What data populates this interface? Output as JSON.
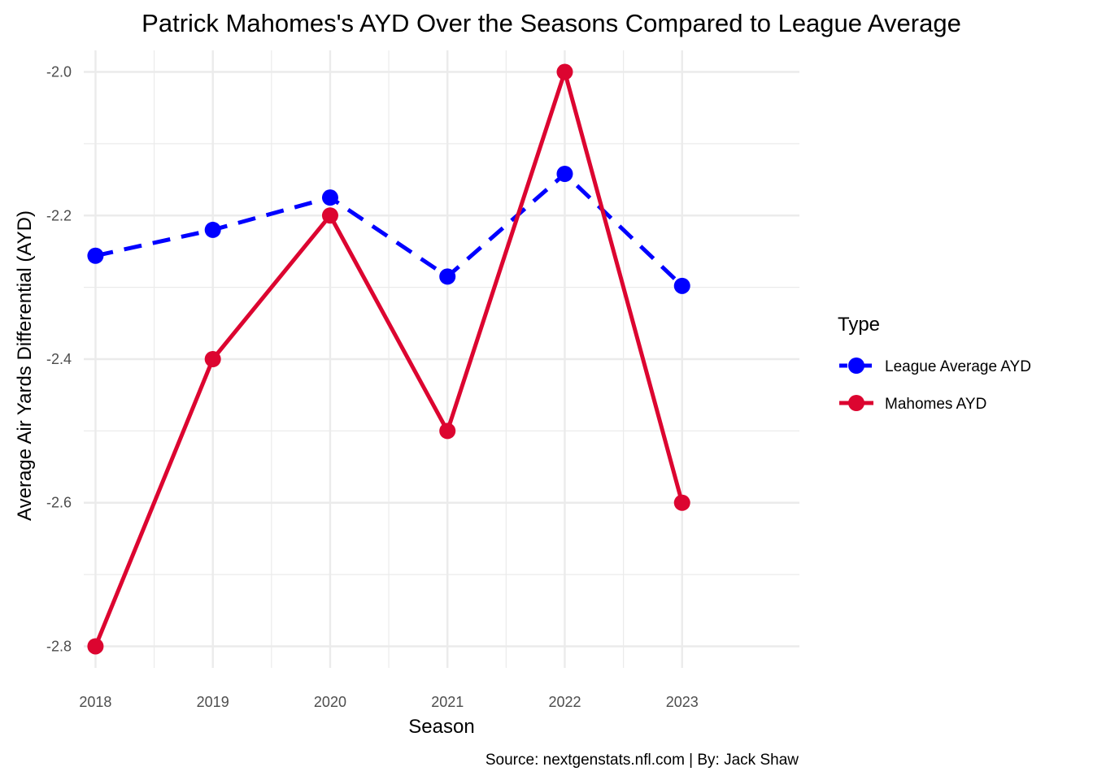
{
  "chart_data": {
    "type": "line",
    "title": "Patrick Mahomes's AYD Over the Seasons Compared to League Average",
    "xlabel": "Season",
    "ylabel": "Average Air Yards Differential (AYD)",
    "caption": "Source: nextgenstats.nfl.com | By: Jack Shaw",
    "x": [
      2018,
      2019,
      2020,
      2021,
      2022,
      2023
    ],
    "x_tick_labels": [
      "2018",
      "2019",
      "2020",
      "2021",
      "2022",
      "2023"
    ],
    "y_ticks": [
      -2.0,
      -2.2,
      -2.4,
      -2.6,
      -2.8
    ],
    "y_tick_labels": [
      "-2.0",
      "-2.2",
      "-2.4",
      "-2.6",
      "-2.8"
    ],
    "xlim": [
      2017.9,
      2024.0
    ],
    "ylim": [
      -2.83,
      -1.97
    ],
    "grid": true,
    "legend": {
      "title": "Type",
      "placement": "right"
    },
    "series": [
      {
        "name": "League Average AYD",
        "color": "#0000ff",
        "line_style": "dashed",
        "values": [
          -2.256,
          -2.22,
          -2.175,
          -2.285,
          -2.142,
          -2.298
        ]
      },
      {
        "name": "Mahomes AYD",
        "color": "#dc0530",
        "line_style": "solid",
        "values": [
          -2.8,
          -2.4,
          -2.2,
          -2.5,
          -2.0,
          -2.6
        ]
      }
    ]
  }
}
